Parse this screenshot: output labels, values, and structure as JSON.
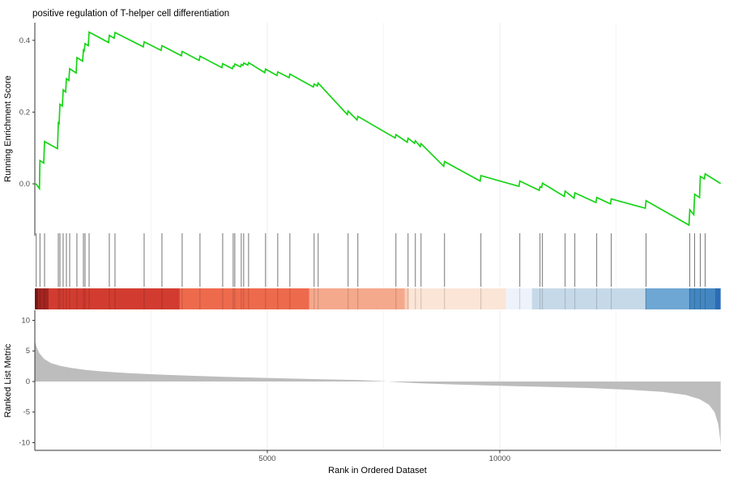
{
  "title": "positive regulation of T-helper cell differentiation",
  "colors": {
    "es_line": "#16d416",
    "metric_fill": "#bdbdbd",
    "axis": "#333333",
    "tick_label": "#4d4d4d",
    "grid_major": "#ececec",
    "grid_minor": "#f5f5f5",
    "hit_tick": "#000000"
  },
  "chart_data": {
    "type": "area",
    "subtype": "gsea-enrichment-plot",
    "title": "positive regulation of T-helper cell differentiation",
    "x_axis": {
      "label": "Rank in Ordered Dataset",
      "range": [
        0,
        14750
      ],
      "ticks": [
        5000,
        10000
      ],
      "tick_labels": [
        "5000",
        "10000"
      ],
      "major_gridlines": [
        5000,
        10000
      ],
      "minor_gridlines": [
        2500,
        7500,
        12500
      ]
    },
    "es_panel": {
      "ylabel": "Running Enrichment Score",
      "yticks": [
        0.4,
        0.2,
        0.0
      ],
      "ytick_labels": [
        "0.4",
        "0.2",
        "0.0"
      ],
      "ylim": [
        -0.145,
        0.45
      ],
      "curve": [
        [
          0,
          0
        ],
        [
          30,
          -0.001
        ],
        [
          100,
          -0.013
        ],
        [
          110,
          0.065
        ],
        [
          192,
          0.058
        ],
        [
          209,
          0.118
        ],
        [
          488,
          0.098
        ],
        [
          505,
          0.17
        ],
        [
          522,
          0.168
        ],
        [
          540,
          0.222
        ],
        [
          592,
          0.217
        ],
        [
          609,
          0.262
        ],
        [
          662,
          0.256
        ],
        [
          679,
          0.293
        ],
        [
          731,
          0.288
        ],
        [
          749,
          0.321
        ],
        [
          888,
          0.309
        ],
        [
          905,
          0.352
        ],
        [
          1027,
          0.342
        ],
        [
          1045,
          0.373
        ],
        [
          1062,
          0.371
        ],
        [
          1080,
          0.391
        ],
        [
          1149,
          0.385
        ],
        [
          1167,
          0.423
        ],
        [
          1585,
          0.394
        ],
        [
          1602,
          0.414
        ],
        [
          1706,
          0.406
        ],
        [
          1724,
          0.422
        ],
        [
          2333,
          0.382
        ],
        [
          2351,
          0.396
        ],
        [
          2716,
          0.372
        ],
        [
          2734,
          0.385
        ],
        [
          3152,
          0.357
        ],
        [
          3169,
          0.369
        ],
        [
          3535,
          0.344
        ],
        [
          3552,
          0.356
        ],
        [
          4022,
          0.324
        ],
        [
          4040,
          0.335
        ],
        [
          4248,
          0.321
        ],
        [
          4266,
          0.328
        ],
        [
          4283,
          0.327
        ],
        [
          4301,
          0.334
        ],
        [
          4422,
          0.326
        ],
        [
          4440,
          0.333
        ],
        [
          4475,
          0.33
        ],
        [
          4492,
          0.337
        ],
        [
          4580,
          0.331
        ],
        [
          4597,
          0.338
        ],
        [
          4945,
          0.31
        ],
        [
          4962,
          0.32
        ],
        [
          5207,
          0.302
        ],
        [
          5224,
          0.312
        ],
        [
          5468,
          0.296
        ],
        [
          5485,
          0.306
        ],
        [
          5990,
          0.27
        ],
        [
          6007,
          0.278
        ],
        [
          6077,
          0.273
        ],
        [
          6094,
          0.281
        ],
        [
          6720,
          0.193
        ],
        [
          6738,
          0.203
        ],
        [
          6930,
          0.178
        ],
        [
          6947,
          0.188
        ],
        [
          7749,
          0.128
        ],
        [
          7766,
          0.137
        ],
        [
          8010,
          0.116
        ],
        [
          8027,
          0.127
        ],
        [
          8167,
          0.113
        ],
        [
          8184,
          0.12
        ],
        [
          8289,
          0.104
        ],
        [
          8306,
          0.112
        ],
        [
          8794,
          0.049
        ],
        [
          8811,
          0.062
        ],
        [
          9577,
          0.008
        ],
        [
          9594,
          0.023
        ],
        [
          10413,
          -0.007
        ],
        [
          10430,
          0.008
        ],
        [
          10848,
          -0.018
        ],
        [
          10865,
          -0.008
        ],
        [
          10900,
          -0.01
        ],
        [
          10917,
          0.002
        ],
        [
          11388,
          -0.035
        ],
        [
          11405,
          -0.02
        ],
        [
          11597,
          -0.04
        ],
        [
          11614,
          -0.025
        ],
        [
          12067,
          -0.052
        ],
        [
          12084,
          -0.038
        ],
        [
          12380,
          -0.056
        ],
        [
          12397,
          -0.042
        ],
        [
          13129,
          -0.068
        ],
        [
          13146,
          -0.047
        ],
        [
          14069,
          -0.115
        ],
        [
          14086,
          -0.072
        ],
        [
          14172,
          -0.086
        ],
        [
          14190,
          -0.029
        ],
        [
          14295,
          -0.038
        ],
        [
          14312,
          0.021
        ],
        [
          14400,
          0.014
        ],
        [
          14417,
          0.028
        ],
        [
          14750,
          0.001
        ]
      ]
    },
    "hits": [
      30,
      110,
      209,
      505,
      540,
      609,
      679,
      749,
      905,
      1045,
      1080,
      1167,
      1602,
      1724,
      2351,
      2734,
      3169,
      3552,
      4040,
      4266,
      4301,
      4440,
      4492,
      4597,
      4962,
      5224,
      5485,
      6007,
      6094,
      6738,
      6947,
      7766,
      8027,
      8184,
      8306,
      8811,
      9594,
      10430,
      10865,
      10917,
      11405,
      11614,
      12084,
      12397,
      13146,
      14086,
      14190,
      14312,
      14417
    ],
    "color_bar": {
      "segments": [
        {
          "from": 0,
          "to": 70,
          "color": "#7c1a15"
        },
        {
          "from": 70,
          "to": 296,
          "color": "#a42420"
        },
        {
          "from": 296,
          "to": 3117,
          "color": "#d23c30"
        },
        {
          "from": 3117,
          "to": 5903,
          "color": "#ee6a4d"
        },
        {
          "from": 5903,
          "to": 7958,
          "color": "#f5a98c"
        },
        {
          "from": 7958,
          "to": 8045,
          "color": "#f9cdb9"
        },
        {
          "from": 8045,
          "to": 10134,
          "color": "#fbe5d6"
        },
        {
          "from": 10134,
          "to": 10691,
          "color": "#eef3fb"
        },
        {
          "from": 10691,
          "to": 13129,
          "color": "#c6d9e8"
        },
        {
          "from": 13129,
          "to": 14069,
          "color": "#6ea7d3"
        },
        {
          "from": 14069,
          "to": 14626,
          "color": "#4387c1"
        },
        {
          "from": 14626,
          "to": 14750,
          "color": "#2a6db6"
        }
      ]
    },
    "metric_panel": {
      "ylabel": "Ranked List Metric",
      "yticks": [
        10,
        5,
        0,
        -5,
        -10
      ],
      "ytick_labels": [
        "10",
        "5",
        "0",
        "-5",
        "-10"
      ],
      "ylim": [
        -11.3,
        11.7
      ],
      "points": [
        [
          1,
          6.55
        ],
        [
          40,
          5.6
        ],
        [
          100,
          4.6
        ],
        [
          200,
          3.7
        ],
        [
          350,
          3.0
        ],
        [
          550,
          2.55
        ],
        [
          800,
          2.2
        ],
        [
          1100,
          1.9
        ],
        [
          1500,
          1.62
        ],
        [
          2000,
          1.38
        ],
        [
          2600,
          1.15
        ],
        [
          3300,
          0.95
        ],
        [
          4100,
          0.76
        ],
        [
          5000,
          0.58
        ],
        [
          6000,
          0.4
        ],
        [
          7000,
          0.22
        ],
        [
          7400,
          0.08
        ],
        [
          7800,
          -0.1
        ],
        [
          8300,
          -0.3
        ],
        [
          9000,
          -0.48
        ],
        [
          10000,
          -0.7
        ],
        [
          11000,
          -0.88
        ],
        [
          12000,
          -1.1
        ],
        [
          12800,
          -1.35
        ],
        [
          13500,
          -1.7
        ],
        [
          14000,
          -2.2
        ],
        [
          14300,
          -2.9
        ],
        [
          14500,
          -3.8
        ],
        [
          14620,
          -5.0
        ],
        [
          14700,
          -7.0
        ],
        [
          14740,
          -9.5
        ],
        [
          14750,
          -10.6
        ]
      ]
    }
  }
}
